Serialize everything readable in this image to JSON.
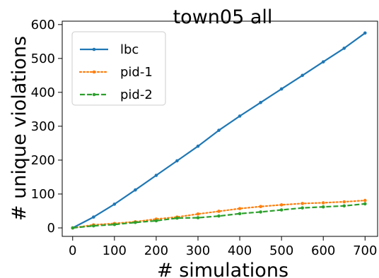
{
  "chart_data": {
    "type": "line",
    "title": "town05 all",
    "xlabel": "# simulations",
    "ylabel": "# unique violations",
    "xlim": [
      -25,
      730
    ],
    "ylim": [
      -25,
      610
    ],
    "xticks": [
      0,
      100,
      200,
      300,
      400,
      500,
      600,
      700
    ],
    "yticks": [
      0,
      100,
      200,
      300,
      400,
      500,
      600
    ],
    "grid": false,
    "legend_position": "top-left",
    "x": [
      0,
      50,
      100,
      150,
      200,
      250,
      300,
      350,
      400,
      450,
      500,
      550,
      600,
      650,
      700
    ],
    "series": [
      {
        "name": "lbc",
        "color": "#1f77b4",
        "style": "solid",
        "values": [
          0,
          32,
          70,
          112,
          155,
          198,
          241,
          288,
          330,
          370,
          410,
          450,
          490,
          530,
          575
        ]
      },
      {
        "name": "pid-1",
        "color": "#ff7f0e",
        "style": "dotted",
        "values": [
          0,
          9,
          13,
          18,
          26,
          32,
          41,
          49,
          57,
          63,
          68,
          72,
          74,
          77,
          81
        ]
      },
      {
        "name": "pid-2",
        "color": "#2ca02c",
        "style": "dashed",
        "values": [
          0,
          6,
          10,
          16,
          21,
          29,
          30,
          35,
          42,
          47,
          53,
          59,
          62,
          65,
          71
        ]
      }
    ]
  }
}
